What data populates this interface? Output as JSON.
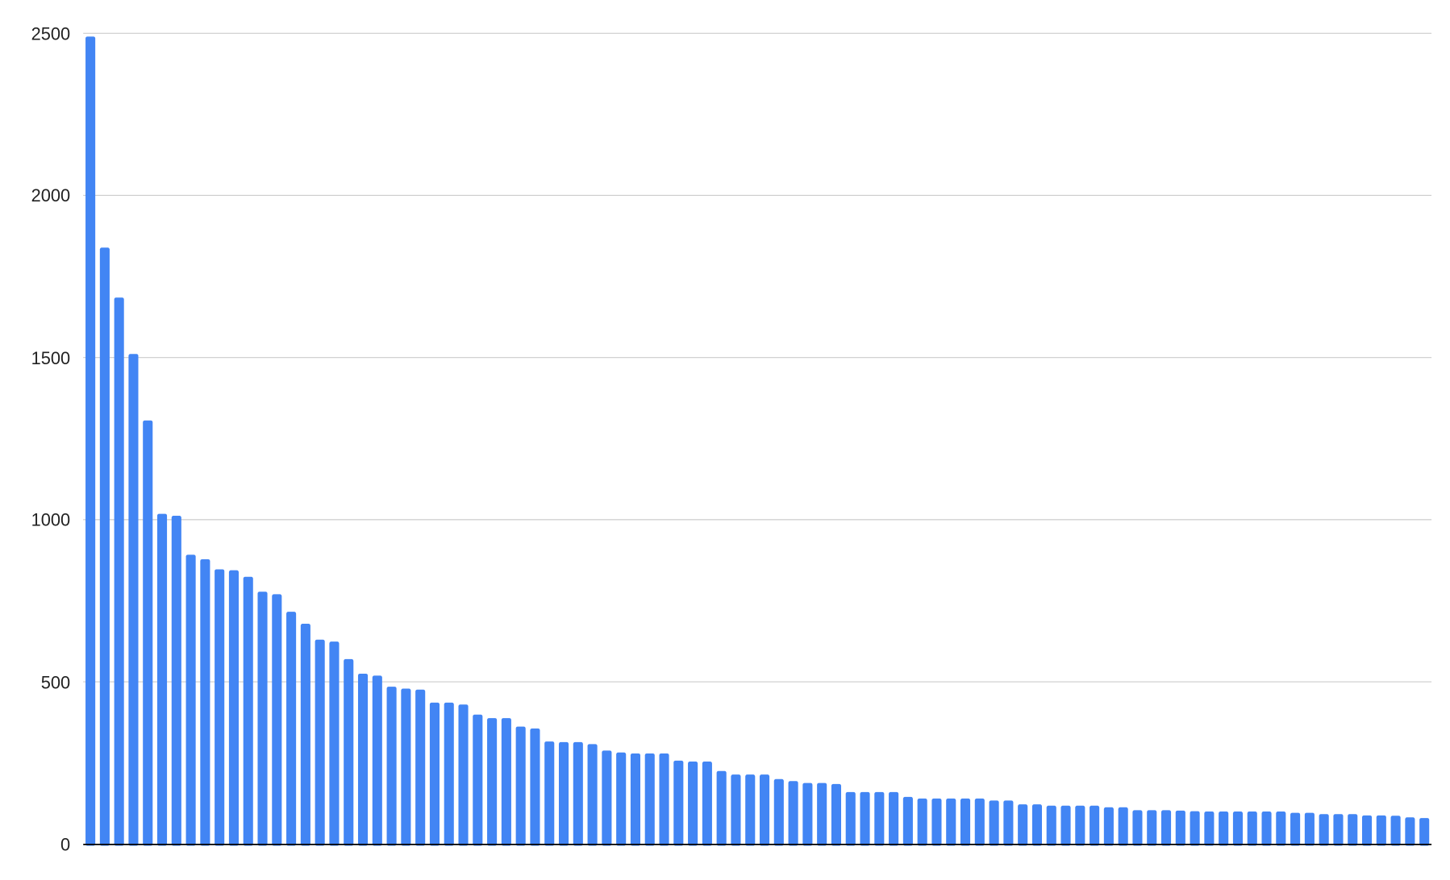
{
  "chart_data": {
    "type": "bar",
    "title": "",
    "xlabel": "",
    "ylabel": "",
    "ylim": [
      0,
      2500
    ],
    "y_ticks": [
      "0",
      "500",
      "1000",
      "1500",
      "2000",
      "2500"
    ],
    "grid": true,
    "legend": "none",
    "bar_color": "#4285f4",
    "values": [
      2490,
      1839,
      1685,
      1511,
      1306,
      1018,
      1012,
      892,
      878,
      847,
      844,
      824,
      778,
      770,
      716,
      679,
      630,
      624,
      570,
      525,
      519,
      485,
      479,
      476,
      436,
      436,
      430,
      399,
      388,
      388,
      362,
      356,
      316,
      314,
      314,
      308,
      288,
      282,
      279,
      279,
      279,
      257,
      254,
      254,
      225,
      214,
      214,
      214,
      200,
      194,
      188,
      188,
      185,
      160,
      160,
      160,
      160,
      145,
      140,
      140,
      140,
      140,
      140,
      134,
      134,
      122,
      122,
      118,
      118,
      118,
      118,
      113,
      113,
      104,
      104,
      104,
      103,
      101,
      100,
      100,
      100,
      100,
      100,
      100,
      96,
      96,
      92,
      92,
      92,
      88,
      88,
      87,
      82,
      80
    ]
  }
}
